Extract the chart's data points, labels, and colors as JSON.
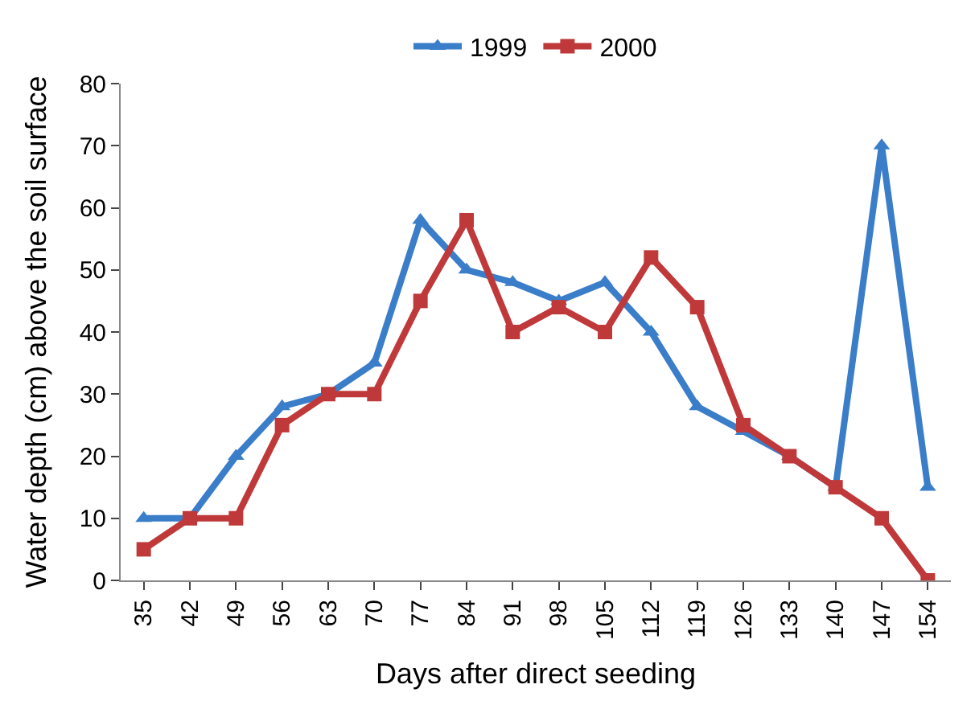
{
  "chart_data": {
    "type": "line",
    "xlabel": "Days after direct seeding",
    "ylabel": "Water depth (cm) above the soil surface",
    "categories": [
      "35",
      "42",
      "49",
      "56",
      "63",
      "70",
      "77",
      "84",
      "91",
      "98",
      "105",
      "112",
      "119",
      "126",
      "133",
      "140",
      "147",
      "154"
    ],
    "series": [
      {
        "name": "1999",
        "color": "#3a7dc9",
        "marker": "triangle",
        "values": [
          10,
          10,
          20,
          28,
          30,
          35,
          58,
          50,
          48,
          45,
          48,
          40,
          28,
          24,
          20,
          15,
          70,
          15
        ]
      },
      {
        "name": "2000",
        "color": "#c0393a",
        "marker": "square",
        "values": [
          5,
          10,
          10,
          25,
          30,
          30,
          45,
          58,
          40,
          44,
          40,
          52,
          44,
          25,
          20,
          15,
          10,
          0
        ]
      }
    ],
    "ylim": [
      0,
      80
    ],
    "yticks": [
      0,
      10,
      20,
      30,
      40,
      50,
      60,
      70,
      80
    ],
    "legend": "top",
    "line_style": "solid"
  }
}
